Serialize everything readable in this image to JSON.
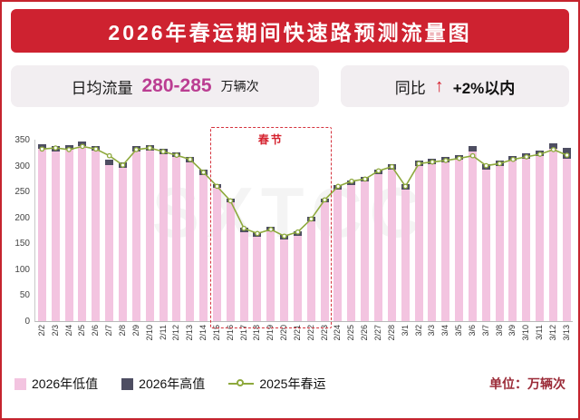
{
  "page": {
    "title": "2026年春运期间快速路预测流量图",
    "unit_note": "单位：万辆次",
    "watermark": "SXTCC"
  },
  "stats": {
    "daily": {
      "label": "日均流量",
      "value": "280-285",
      "unit": "万辆次"
    },
    "yoy": {
      "label": "同比",
      "arrow": "↑",
      "value": "+2%以内"
    }
  },
  "colors": {
    "brand_red": "#ce2230",
    "bar_low_pink": "#f3c4e0",
    "bar_high_dark": "#4e4e62",
    "line_olive": "#8ea93d",
    "value_magenta": "#bb3e92",
    "unit_maroon": "#9b2b38"
  },
  "chart_data": {
    "type": "bar",
    "title": "2026年春运期间快速路预测流量图",
    "xlabel": "",
    "ylabel": "",
    "ylim": [
      0,
      350
    ],
    "yticks": [
      350,
      300,
      250,
      200,
      150,
      100,
      50,
      0
    ],
    "grid": false,
    "legend_position": "bottom",
    "categories": [
      "2/2",
      "2/3",
      "2/4",
      "2/5",
      "2/6",
      "2/7",
      "2/8",
      "2/9",
      "2/10",
      "2/11",
      "2/12",
      "2/13",
      "2/14",
      "2/15",
      "2/16",
      "2/17",
      "2/18",
      "2/19",
      "2/20",
      "2/21",
      "2/22",
      "2/23",
      "2/24",
      "2/25",
      "2/26",
      "2/27",
      "2/28",
      "3/1",
      "3/2",
      "3/3",
      "3/4",
      "3/5",
      "3/6",
      "3/7",
      "3/8",
      "3/9",
      "3/10",
      "3/11",
      "3/12",
      "3/13"
    ],
    "series": [
      {
        "name": "2026年低值",
        "type": "bar",
        "color": "#f3c4e0",
        "values": [
          332,
          328,
          330,
          337,
          329,
          301,
          296,
          327,
          329,
          322,
          316,
          306,
          282,
          257,
          229,
          172,
          162,
          173,
          158,
          164,
          193,
          229,
          253,
          263,
          269,
          283,
          293,
          254,
          299,
          303,
          306,
          311,
          327,
          293,
          299,
          309,
          313,
          319,
          333,
          314
        ]
      },
      {
        "name": "2026年高值",
        "type": "bar-cap",
        "color": "#4e4e62",
        "values": [
          341,
          337,
          339,
          346,
          338,
          311,
          306,
          337,
          339,
          332,
          326,
          316,
          292,
          265,
          237,
          181,
          171,
          182,
          167,
          173,
          202,
          237,
          262,
          272,
          279,
          293,
          303,
          264,
          309,
          313,
          316,
          321,
          337,
          302,
          309,
          318,
          323,
          329,
          343,
          334
        ]
      },
      {
        "name": "2025年春运",
        "type": "line",
        "color": "#8ea93d",
        "values": [
          332,
          334,
          331,
          337,
          332,
          319,
          301,
          331,
          334,
          327,
          320,
          312,
          287,
          260,
          232,
          179,
          169,
          177,
          164,
          172,
          197,
          234,
          260,
          270,
          274,
          290,
          298,
          260,
          304,
          307,
          310,
          314,
          319,
          300,
          304,
          312,
          317,
          322,
          331,
          320
        ]
      }
    ],
    "annotation": {
      "label": "春节",
      "start_index": 13,
      "end_index": 21
    }
  }
}
